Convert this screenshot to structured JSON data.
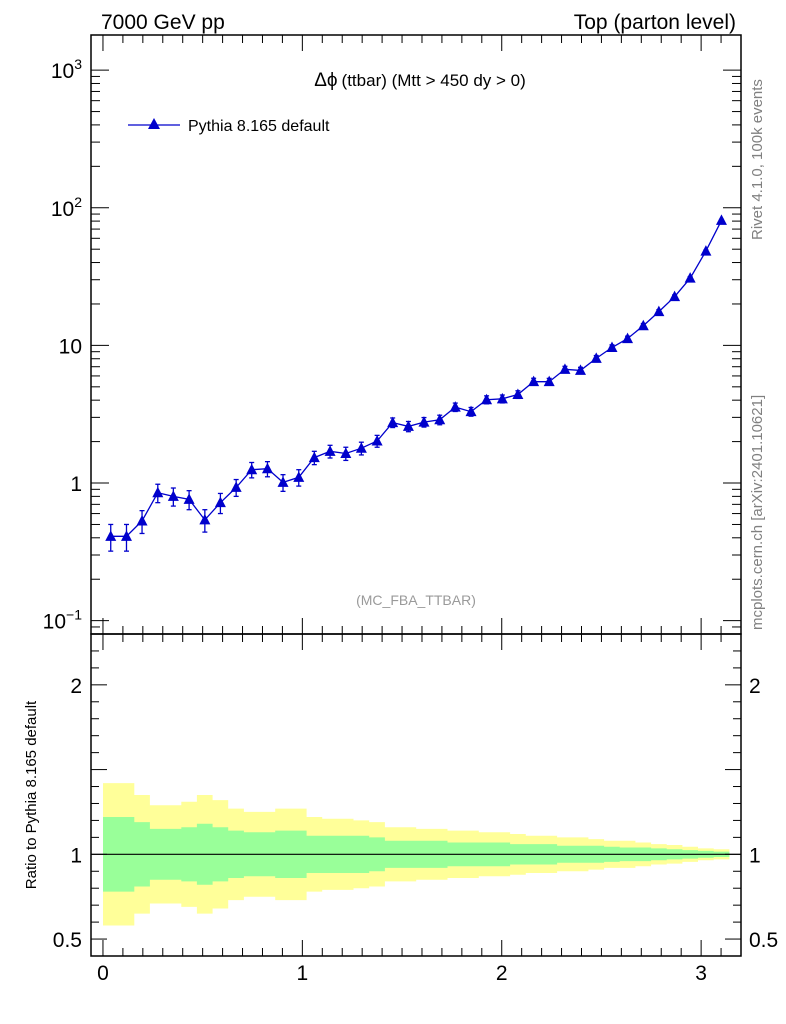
{
  "header": {
    "left": "7000 GeV pp",
    "right": "Top (parton level)"
  },
  "side_labels": {
    "rivet": "Rivet 4.1.0,  100k events",
    "mcplots": "mcplots.cern.ch [arXiv:2401.10621]"
  },
  "colors": {
    "series": "#0000cc",
    "band_inner": "#99ff99",
    "band_outer": "#ffff99"
  },
  "chart_data": [
    {
      "type": "line",
      "title_prefix": "Δϕ",
      "title": "(ttbar) (Mtt > 450 dy > 0)",
      "watermark": "(MC_FBA_TTBAR)",
      "yscale": "log",
      "ylim": [
        0.08,
        1800
      ],
      "xlim": [
        -0.06,
        3.2
      ],
      "ytick_labels": [
        {
          "value": 0.1,
          "base": "10",
          "exp": "−1"
        },
        {
          "value": 1,
          "base": "1",
          "exp": ""
        },
        {
          "value": 10,
          "base": "10",
          "exp": ""
        },
        {
          "value": 100,
          "base": "10",
          "exp": "2"
        },
        {
          "value": 1000,
          "base": "10",
          "exp": "3"
        }
      ],
      "legend": {
        "label": "Pythia 8.165 default",
        "position": "top-left"
      },
      "series": [
        {
          "name": "Pythia 8.165 default",
          "marker": "triangle",
          "x": [
            0.039,
            0.118,
            0.196,
            0.275,
            0.353,
            0.432,
            0.511,
            0.589,
            0.668,
            0.746,
            0.825,
            0.903,
            0.982,
            1.06,
            1.139,
            1.218,
            1.296,
            1.375,
            1.453,
            1.532,
            1.61,
            1.689,
            1.767,
            1.846,
            1.924,
            2.003,
            2.081,
            2.16,
            2.238,
            2.317,
            2.395,
            2.474,
            2.553,
            2.631,
            2.71,
            2.788,
            2.867,
            2.945,
            3.024,
            3.102
          ],
          "y": [
            0.41,
            0.41,
            0.53,
            0.85,
            0.8,
            0.76,
            0.54,
            0.72,
            0.93,
            1.25,
            1.27,
            1.01,
            1.1,
            1.53,
            1.7,
            1.64,
            1.79,
            2.02,
            2.75,
            2.58,
            2.77,
            2.88,
            3.56,
            3.3,
            4.03,
            4.09,
            4.4,
            5.46,
            5.45,
            6.7,
            6.58,
            8.05,
            9.66,
            11.2,
            13.9,
            17.6,
            22.6,
            30.8,
            48.4,
            81.0
          ],
          "err": [
            0.09,
            0.09,
            0.1,
            0.13,
            0.12,
            0.12,
            0.1,
            0.12,
            0.13,
            0.16,
            0.16,
            0.14,
            0.15,
            0.17,
            0.18,
            0.18,
            0.19,
            0.2,
            0.22,
            0.22,
            0.22,
            0.23,
            0.25,
            0.24,
            0.27,
            0.27,
            0.28,
            0.31,
            0.31,
            0.35,
            0.35,
            0.39,
            0.43,
            0.47,
            0.52,
            0.59,
            0.67,
            0.78,
            0.98,
            1.27
          ]
        }
      ]
    },
    {
      "type": "area",
      "ylabel": "Ratio to Pythia 8.165 default",
      "ylim": [
        0.4,
        2.3
      ],
      "xlim": [
        -0.06,
        3.2
      ],
      "xticks": [
        0,
        1,
        2,
        3
      ],
      "xtick_labels": [
        "0",
        "1",
        "2",
        "3"
      ],
      "yticks": [
        0.5,
        1,
        2
      ],
      "ytick_labels": [
        "0.5",
        "1",
        "2"
      ],
      "reference_line": 1,
      "bin_edges": [
        0.0,
        0.0785,
        0.157,
        0.2356,
        0.3141,
        0.3927,
        0.4712,
        0.5498,
        0.6283,
        0.7069,
        0.7854,
        0.864,
        0.9425,
        1.0211,
        1.0996,
        1.1781,
        1.2567,
        1.3352,
        1.4138,
        1.4923,
        1.5708,
        1.6493,
        1.7279,
        1.8064,
        1.885,
        1.9635,
        2.042,
        2.1206,
        2.1991,
        2.2777,
        2.3562,
        2.4347,
        2.5133,
        2.5918,
        2.6704,
        2.7489,
        2.8274,
        2.906,
        2.9845,
        3.063,
        3.1416
      ],
      "inner_band": [
        0.22,
        0.22,
        0.19,
        0.15,
        0.15,
        0.16,
        0.18,
        0.16,
        0.14,
        0.13,
        0.13,
        0.14,
        0.14,
        0.11,
        0.11,
        0.11,
        0.11,
        0.1,
        0.08,
        0.08,
        0.08,
        0.08,
        0.07,
        0.07,
        0.07,
        0.07,
        0.06,
        0.06,
        0.06,
        0.05,
        0.05,
        0.05,
        0.045,
        0.04,
        0.04,
        0.035,
        0.03,
        0.025,
        0.02,
        0.016
      ],
      "outer_band": [
        0.42,
        0.42,
        0.35,
        0.29,
        0.29,
        0.31,
        0.35,
        0.32,
        0.27,
        0.25,
        0.25,
        0.27,
        0.27,
        0.22,
        0.21,
        0.21,
        0.2,
        0.19,
        0.16,
        0.16,
        0.15,
        0.15,
        0.14,
        0.14,
        0.13,
        0.13,
        0.12,
        0.11,
        0.11,
        0.1,
        0.1,
        0.09,
        0.08,
        0.08,
        0.07,
        0.06,
        0.055,
        0.045,
        0.035,
        0.03
      ]
    }
  ]
}
